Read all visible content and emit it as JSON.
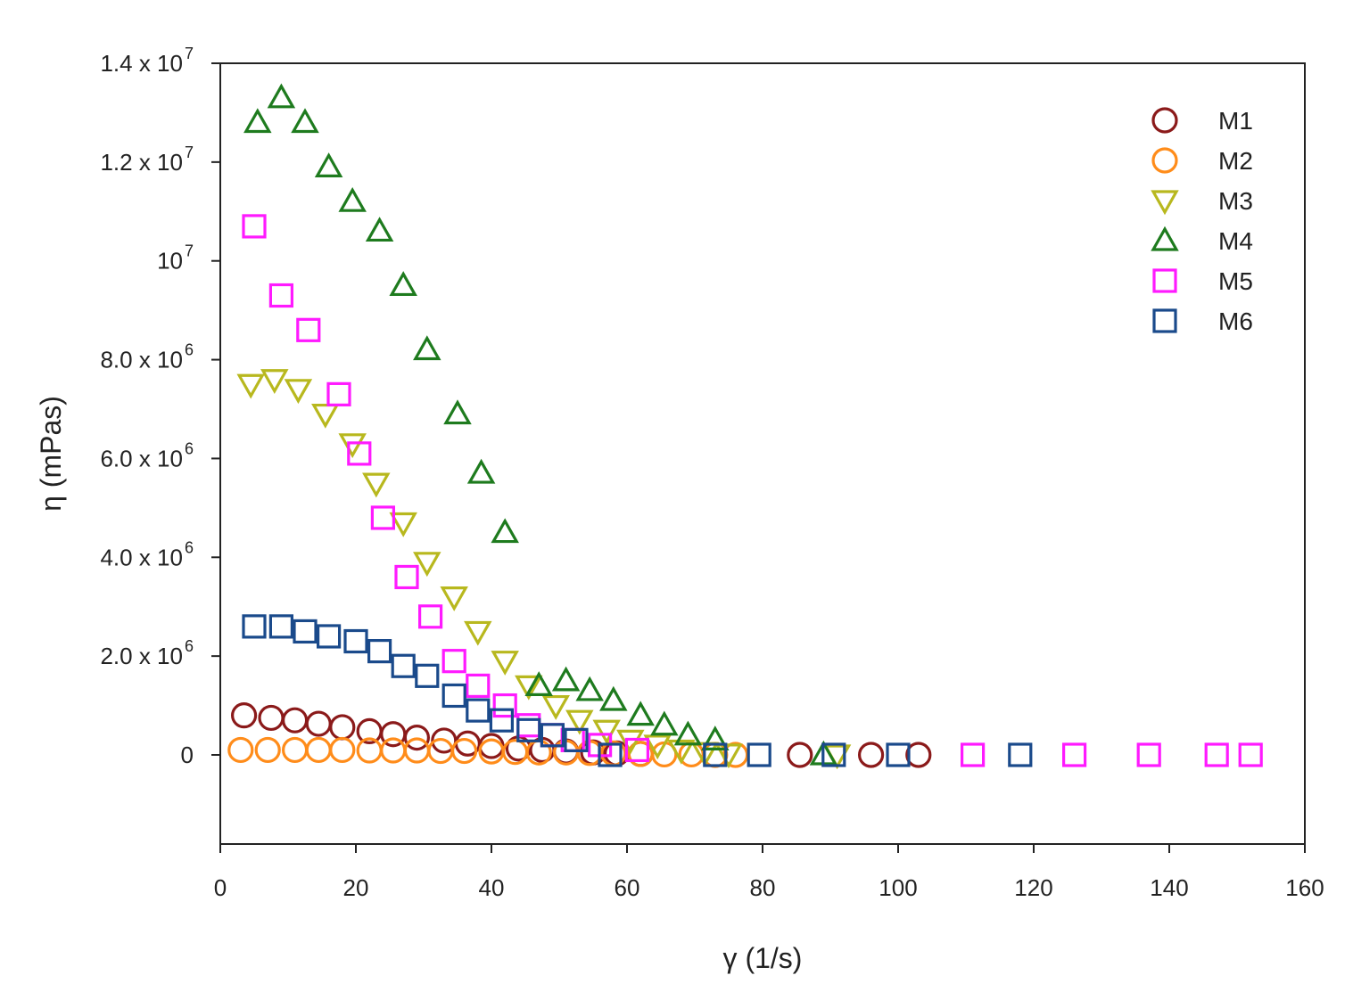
{
  "chart_data": {
    "type": "scatter",
    "title": "",
    "xlabel": "γ (1/s)",
    "ylabel": "η (mPas)",
    "xlim": [
      0,
      160
    ],
    "ylim": [
      -1800000,
      14000000
    ],
    "x_ticks": [
      {
        "value": 0,
        "label": "0"
      },
      {
        "value": 20,
        "label": "20"
      },
      {
        "value": 40,
        "label": "40"
      },
      {
        "value": 60,
        "label": "60"
      },
      {
        "value": 80,
        "label": "80"
      },
      {
        "value": 100,
        "label": "100"
      },
      {
        "value": 120,
        "label": "120"
      },
      {
        "value": 140,
        "label": "140"
      },
      {
        "value": 160,
        "label": "160"
      }
    ],
    "y_ticks": [
      {
        "value": 0,
        "label": "0",
        "exp": ""
      },
      {
        "value": 2000000,
        "label": "2.0 x 10",
        "exp": "6"
      },
      {
        "value": 4000000,
        "label": "4.0 x 10",
        "exp": "6"
      },
      {
        "value": 6000000,
        "label": "6.0 x 10",
        "exp": "6"
      },
      {
        "value": 8000000,
        "label": "8.0 x 10",
        "exp": "6"
      },
      {
        "value": 10000000,
        "label": "10",
        "exp": "7"
      },
      {
        "value": 12000000,
        "label": "1.2 x 10",
        "exp": "7"
      },
      {
        "value": 14000000,
        "label": "1.4 x 10",
        "exp": "7"
      }
    ],
    "legend_position": "top-right",
    "series": [
      {
        "name": "M1",
        "marker": "circle",
        "color": "#8B1A1A",
        "x": [
          3.5,
          7.5,
          11,
          14.5,
          18,
          22,
          25.5,
          29,
          33,
          36.5,
          40,
          44,
          47.5,
          51,
          55,
          58.5,
          62,
          85.5,
          96,
          103
        ],
        "y": [
          800000,
          750000,
          700000,
          630000,
          560000,
          480000,
          420000,
          350000,
          290000,
          230000,
          180000,
          130000,
          100000,
          70000,
          50000,
          30000,
          20000,
          0,
          0,
          0
        ]
      },
      {
        "name": "M2",
        "marker": "circle",
        "color": "#FF8C1A",
        "x": [
          3,
          7,
          11,
          14.5,
          18,
          22,
          25.5,
          29,
          32.5,
          36,
          40,
          43.5,
          47,
          51,
          54.5,
          58,
          62,
          65.5,
          69.5,
          73,
          76
        ],
        "y": [
          100000,
          100000,
          100000,
          100000,
          100000,
          90000,
          90000,
          90000,
          80000,
          80000,
          70000,
          60000,
          50000,
          50000,
          40000,
          30000,
          20000,
          10000,
          10000,
          0,
          0
        ]
      },
      {
        "name": "M3",
        "marker": "triangle-down",
        "color": "#B8B81E",
        "x": [
          4.5,
          8,
          11.5,
          15.5,
          19.5,
          23,
          27,
          30.5,
          34.5,
          38,
          42,
          45.5,
          49.5,
          53,
          57,
          60.5,
          64.5,
          68,
          71.5,
          75,
          91
        ],
        "y": [
          7500000,
          7600000,
          7400000,
          6900000,
          6300000,
          5500000,
          4700000,
          3900000,
          3200000,
          2500000,
          1900000,
          1400000,
          1000000,
          700000,
          500000,
          300000,
          200000,
          100000,
          50000,
          20000,
          0
        ]
      },
      {
        "name": "M4",
        "marker": "triangle-up",
        "color": "#1E7B1E",
        "x": [
          5.5,
          9,
          12.5,
          16,
          19.5,
          23.5,
          27,
          30.5,
          35,
          38.5,
          42,
          47,
          51,
          54.5,
          58,
          62,
          65.5,
          69,
          73,
          89
        ],
        "y": [
          12800000,
          13300000,
          12800000,
          11900000,
          11200000,
          10600000,
          9500000,
          8200000,
          6900000,
          5700000,
          4500000,
          1400000,
          1500000,
          1300000,
          1100000,
          800000,
          600000,
          400000,
          300000,
          0
        ]
      },
      {
        "name": "M5",
        "marker": "square",
        "color": "#FF1AFF",
        "x": [
          5,
          9,
          13,
          17.5,
          20.5,
          24,
          27.5,
          31,
          34.5,
          38,
          42,
          45.5,
          49,
          52,
          56,
          61.5,
          111,
          126,
          137,
          147,
          152
        ],
        "y": [
          10700000,
          9300000,
          8600000,
          7300000,
          6100000,
          4800000,
          3600000,
          2800000,
          1900000,
          1400000,
          1000000,
          600000,
          400000,
          300000,
          200000,
          100000,
          0,
          0,
          0,
          0,
          0
        ]
      },
      {
        "name": "M6",
        "marker": "square",
        "color": "#1A4A8B",
        "x": [
          5,
          9,
          12.5,
          16,
          20,
          23.5,
          27,
          30.5,
          34.5,
          38,
          41.5,
          45.5,
          49,
          52.5,
          57.5,
          73,
          79.5,
          90.5,
          100,
          118
        ],
        "y": [
          2600000,
          2600000,
          2500000,
          2400000,
          2300000,
          2100000,
          1800000,
          1600000,
          1200000,
          900000,
          700000,
          500000,
          400000,
          300000,
          0,
          0,
          0,
          0,
          0,
          0
        ]
      }
    ]
  }
}
